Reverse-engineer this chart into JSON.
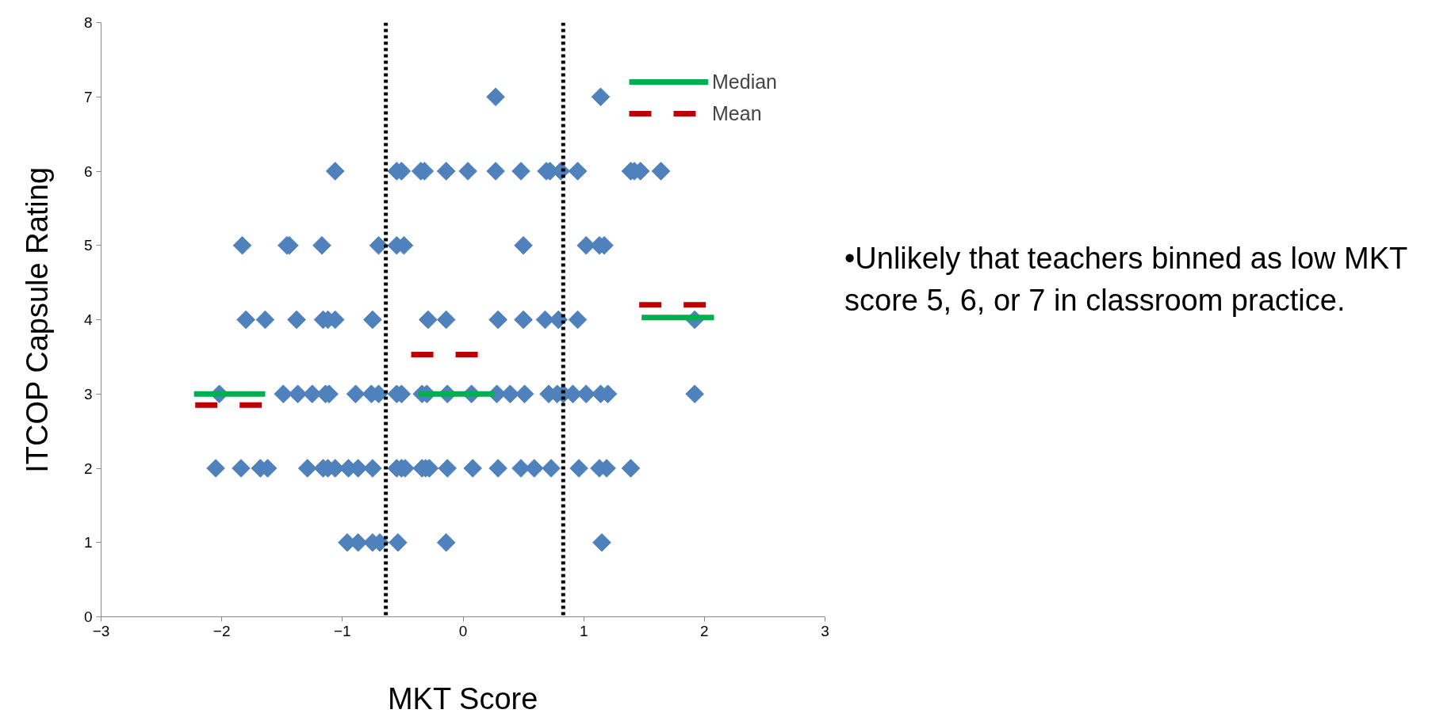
{
  "chart_data": {
    "type": "scatter",
    "xlabel": "MKT Score",
    "ylabel": "ITCOP Capsule Rating",
    "xlim": [
      -3,
      3
    ],
    "ylim": [
      0,
      8
    ],
    "xticks": [
      -3,
      -2,
      -1,
      0,
      1,
      2,
      3
    ],
    "yticks": [
      0,
      1,
      2,
      3,
      4,
      5,
      6,
      7,
      8
    ],
    "grid": false,
    "legend": "top right",
    "series": [
      {
        "marker": "diamond",
        "color": "#4f81bd",
        "x": [
          0.27,
          1.14,
          -1.06,
          -0.55,
          -0.51,
          -0.35,
          -0.32,
          -0.14,
          0.04,
          0.27,
          0.48,
          0.69,
          0.72,
          0.81,
          0.95,
          1.39,
          1.42,
          1.47,
          1.64,
          -1.83,
          -1.46,
          -1.44,
          -1.17,
          -0.7,
          -0.55,
          -0.49,
          0.5,
          1.02,
          1.13,
          1.17,
          -1.8,
          -1.64,
          -1.38,
          -1.16,
          -1.12,
          -1.06,
          -0.75,
          -0.29,
          -0.14,
          0.29,
          0.5,
          0.68,
          0.79,
          0.95,
          1.92,
          -2.02,
          -1.49,
          -1.37,
          -1.25,
          -1.14,
          -1.11,
          -0.89,
          -0.76,
          -0.7,
          -0.55,
          -0.51,
          -0.34,
          -0.3,
          -0.13,
          0.07,
          0.28,
          0.39,
          0.51,
          0.71,
          0.78,
          0.83,
          0.91,
          1.02,
          1.14,
          1.2,
          1.92,
          -2.05,
          -1.84,
          -1.68,
          -1.62,
          -1.29,
          -1.16,
          -1.12,
          -1.06,
          -0.95,
          -0.87,
          -0.75,
          -0.55,
          -0.51,
          -0.48,
          -0.34,
          -0.31,
          -0.28,
          -0.13,
          0.08,
          0.29,
          0.48,
          0.59,
          0.73,
          0.96,
          1.13,
          1.19,
          1.39,
          -0.96,
          -0.87,
          -0.75,
          -0.69,
          -0.54,
          -0.14,
          1.15
        ],
        "values": [
          7,
          7,
          6,
          6,
          6,
          6,
          6,
          6,
          6,
          6,
          6,
          6,
          6,
          6,
          6,
          6,
          6,
          6,
          6,
          5,
          5,
          5,
          5,
          5,
          5,
          5,
          5,
          5,
          5,
          5,
          4,
          4,
          4,
          4,
          4,
          4,
          4,
          4,
          4,
          4,
          4,
          4,
          4,
          4,
          4,
          3,
          3,
          3,
          3,
          3,
          3,
          3,
          3,
          3,
          3,
          3,
          3,
          3,
          3,
          3,
          3,
          3,
          3,
          3,
          3,
          3,
          3,
          3,
          3,
          3,
          3,
          2,
          2,
          2,
          2,
          2,
          2,
          2,
          2,
          2,
          2,
          2,
          2,
          2,
          2,
          2,
          2,
          2,
          2,
          2,
          2,
          2,
          2,
          2,
          2,
          2,
          2,
          2,
          1,
          1,
          1,
          1,
          1,
          1,
          1
        ]
      },
      {
        "type": "line",
        "name": "Median",
        "color": "#00b050",
        "line_style": "solid",
        "marker": "none",
        "x": [
          -2.23,
          -1.64,
          -1.0,
          -0.37,
          0.26,
          1.0,
          1.48,
          2.08
        ],
        "values": [
          3,
          3,
          null,
          3,
          3,
          null,
          4.03,
          4.03
        ]
      },
      {
        "type": "line",
        "name": "Mean",
        "color": "#c00000",
        "line_style": "dashed",
        "marker": "none",
        "x": [
          -2.22,
          -1.64,
          -1.0,
          -0.43,
          0.14,
          1.0,
          1.46,
          2.04
        ],
        "values": [
          2.85,
          2.85,
          null,
          3.53,
          3.53,
          null,
          4.2,
          4.2
        ]
      }
    ],
    "ref_lines": [
      {
        "axis": "x",
        "value": -0.64,
        "color": "#000000",
        "line_style": "dotted"
      },
      {
        "axis": "x",
        "value": 0.83,
        "color": "#000000",
        "line_style": "dotted"
      }
    ],
    "annotations": [
      "•Unlikely that teachers binned as low MKT score 5, 6, or 7 in classroom practice."
    ]
  }
}
